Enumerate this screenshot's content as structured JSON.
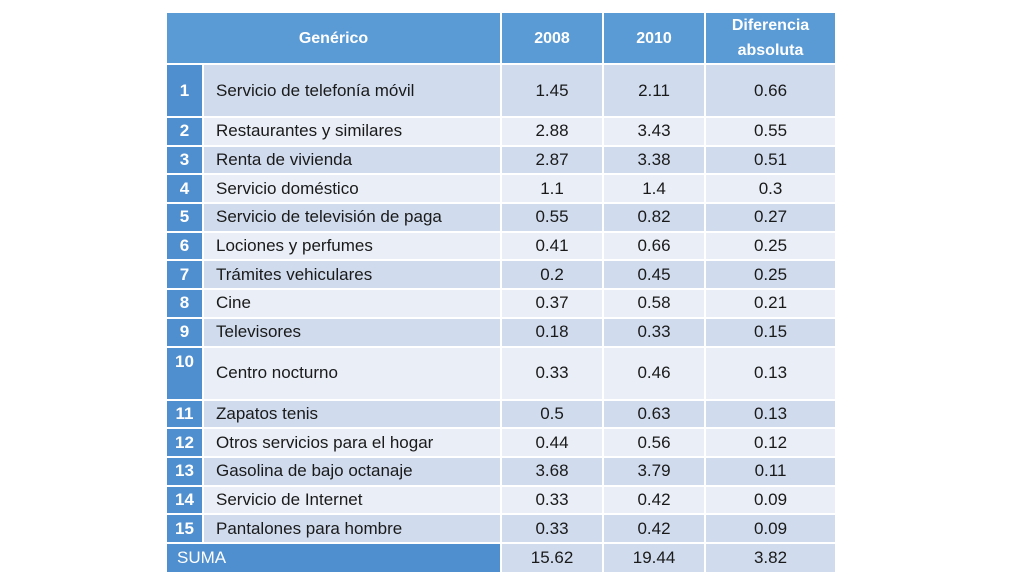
{
  "table": {
    "headers": {
      "generic": "Genérico",
      "year1": "2008",
      "year2": "2010",
      "diff": "Diferencia absoluta"
    },
    "rows": [
      {
        "n": "1",
        "name": "Servicio de telefonía móvil",
        "v2008": "1.45",
        "v2010": "2.11",
        "diff": "0.66"
      },
      {
        "n": "2",
        "name": "Restaurantes y similares",
        "v2008": "2.88",
        "v2010": "3.43",
        "diff": "0.55"
      },
      {
        "n": "3",
        "name": "Renta de vivienda",
        "v2008": "2.87",
        "v2010": "3.38",
        "diff": "0.51"
      },
      {
        "n": "4",
        "name": "Servicio doméstico",
        "v2008": "1.1",
        "v2010": "1.4",
        "diff": "0.3"
      },
      {
        "n": "5",
        "name": "Servicio de televisión de paga",
        "v2008": "0.55",
        "v2010": "0.82",
        "diff": "0.27"
      },
      {
        "n": "6",
        "name": "Lociones y perfumes",
        "v2008": "0.41",
        "v2010": "0.66",
        "diff": "0.25"
      },
      {
        "n": "7",
        "name": "Trámites vehiculares",
        "v2008": "0.2",
        "v2010": "0.45",
        "diff": "0.25"
      },
      {
        "n": "8",
        "name": "Cine",
        "v2008": "0.37",
        "v2010": "0.58",
        "diff": "0.21"
      },
      {
        "n": "9",
        "name": "Televisores",
        "v2008": "0.18",
        "v2010": "0.33",
        "diff": "0.15"
      },
      {
        "n": "10",
        "name": "Centro nocturno",
        "v2008": "0.33",
        "v2010": "0.46",
        "diff": "0.13"
      },
      {
        "n": "11",
        "name": "Zapatos tenis",
        "v2008": "0.5",
        "v2010": "0.63",
        "diff": "0.13"
      },
      {
        "n": "12",
        "name": "Otros servicios para el hogar",
        "v2008": "0.44",
        "v2010": "0.56",
        "diff": "0.12"
      },
      {
        "n": "13",
        "name": "Gasolina de bajo octanaje",
        "v2008": "3.68",
        "v2010": "3.79",
        "diff": "0.11"
      },
      {
        "n": "14",
        "name": "Servicio de Internet",
        "v2008": "0.33",
        "v2010": "0.42",
        "diff": "0.09"
      },
      {
        "n": "15",
        "name": "Pantalones para hombre",
        "v2008": "0.33",
        "v2010": "0.42",
        "diff": "0.09"
      }
    ],
    "sum": {
      "label": "SUMA",
      "v2008": "15.62",
      "v2010": "19.44",
      "diff": "3.82"
    }
  },
  "colors": {
    "header_bg": "#5b9bd5",
    "index_bg": "#4f8fd0",
    "row_odd": "#d0dcee",
    "row_even": "#e9eef7"
  }
}
